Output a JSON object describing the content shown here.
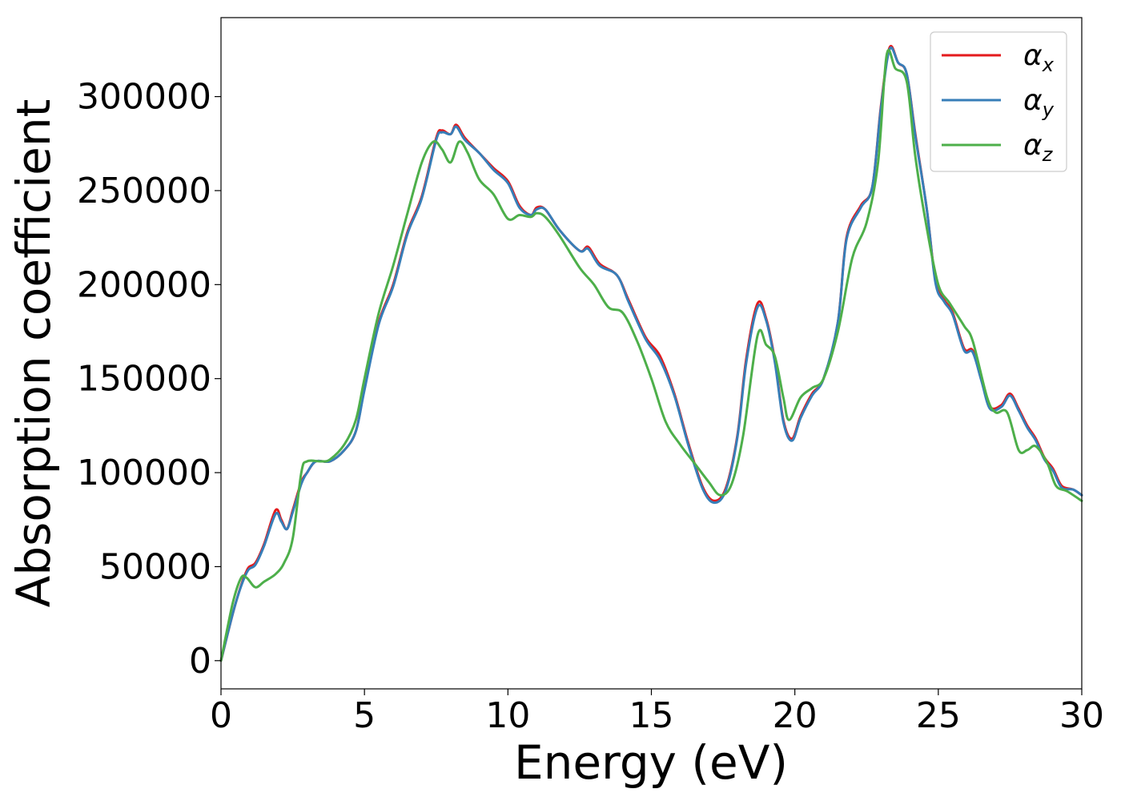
{
  "chart_data": {
    "type": "line",
    "title": "",
    "xlabel": "Energy (eV)",
    "ylabel": "Absorption coefficient",
    "xlim": [
      0,
      30
    ],
    "ylim": [
      -15000,
      342000
    ],
    "xticks": [
      0,
      5,
      10,
      15,
      20,
      25,
      30
    ],
    "xtick_labels": [
      "0",
      "5",
      "10",
      "15",
      "20",
      "25",
      "30"
    ],
    "yticks": [
      0,
      50000,
      100000,
      150000,
      200000,
      250000,
      300000
    ],
    "ytick_labels": [
      "0",
      "50000",
      "100000",
      "150000",
      "200000",
      "250000",
      "300000"
    ],
    "grid": false,
    "legend": {
      "position": "top-right"
    },
    "series": [
      {
        "name": "α",
        "subscript": "x",
        "color": "#e41a1c",
        "x": [
          0,
          0.5,
          0.9,
          1.2,
          1.5,
          1.9,
          2.1,
          2.3,
          2.5,
          2.8,
          3.0,
          3.3,
          3.8,
          4.3,
          4.7,
          5.0,
          5.5,
          6.0,
          6.5,
          7.0,
          7.5,
          7.7,
          8.0,
          8.2,
          8.5,
          9.0,
          9.5,
          10.0,
          10.4,
          10.8,
          11.0,
          11.3,
          11.8,
          12.5,
          12.8,
          13.2,
          13.8,
          14.2,
          14.8,
          15.3,
          15.8,
          16.3,
          16.8,
          17.2,
          17.6,
          18.0,
          18.3,
          18.7,
          19.0,
          19.3,
          19.6,
          19.9,
          20.2,
          20.6,
          21.0,
          21.5,
          21.8,
          22.3,
          22.7,
          23.0,
          23.3,
          23.6,
          23.9,
          24.2,
          24.6,
          24.9,
          25.2,
          25.5,
          25.9,
          26.2,
          26.5,
          26.8,
          27.2,
          27.5,
          27.8,
          28.1,
          28.4,
          28.7,
          29.0,
          29.3,
          29.7,
          30.0
        ],
        "y": [
          0,
          30000,
          48000,
          52000,
          62000,
          80000,
          75000,
          70000,
          80000,
          95000,
          100000,
          106000,
          106000,
          112000,
          122000,
          145000,
          180000,
          200000,
          228000,
          247000,
          278000,
          282000,
          280000,
          285000,
          278000,
          270000,
          262000,
          255000,
          242000,
          237000,
          241000,
          240000,
          229000,
          218000,
          220000,
          211000,
          205000,
          192000,
          172000,
          162000,
          142000,
          115000,
          92000,
          85000,
          92000,
          120000,
          160000,
          190000,
          182000,
          160000,
          128000,
          118000,
          130000,
          142000,
          150000,
          180000,
          225000,
          242000,
          252000,
          295000,
          326000,
          318000,
          312000,
          280000,
          240000,
          202000,
          192000,
          185000,
          166000,
          165000,
          150000,
          135000,
          136000,
          142000,
          134000,
          125000,
          118000,
          108000,
          102000,
          93000,
          91000,
          88000
        ]
      },
      {
        "name": "α",
        "subscript": "y",
        "color": "#377eb8",
        "x": [
          0,
          0.5,
          0.9,
          1.2,
          1.5,
          1.9,
          2.1,
          2.3,
          2.5,
          2.8,
          3.0,
          3.3,
          3.8,
          4.3,
          4.7,
          5.0,
          5.5,
          6.0,
          6.5,
          7.0,
          7.5,
          7.7,
          8.0,
          8.2,
          8.5,
          9.0,
          9.5,
          10.0,
          10.4,
          10.8,
          11.0,
          11.3,
          11.8,
          12.5,
          12.8,
          13.2,
          13.8,
          14.2,
          14.8,
          15.3,
          15.8,
          16.3,
          16.8,
          17.2,
          17.6,
          18.0,
          18.3,
          18.7,
          19.0,
          19.3,
          19.6,
          19.9,
          20.2,
          20.6,
          21.0,
          21.5,
          21.8,
          22.3,
          22.7,
          23.0,
          23.3,
          23.6,
          23.9,
          24.2,
          24.6,
          24.9,
          25.2,
          25.5,
          25.9,
          26.2,
          26.5,
          26.8,
          27.2,
          27.5,
          27.8,
          28.1,
          28.4,
          28.7,
          29.0,
          29.3,
          29.7,
          30.0
        ],
        "y": [
          0,
          30000,
          47000,
          51000,
          61000,
          78000,
          74000,
          70000,
          79000,
          94000,
          100000,
          106000,
          106000,
          112000,
          122000,
          144000,
          179000,
          199000,
          227000,
          246000,
          277000,
          281000,
          280000,
          284000,
          277000,
          270000,
          261000,
          254000,
          241000,
          237000,
          240000,
          240000,
          229000,
          218000,
          219000,
          210000,
          205000,
          191000,
          171000,
          160000,
          141000,
          114000,
          91000,
          84000,
          91000,
          119000,
          158000,
          188000,
          181000,
          159000,
          127000,
          117000,
          129000,
          141000,
          150000,
          180000,
          224000,
          241000,
          252000,
          294000,
          325000,
          318000,
          312000,
          279000,
          240000,
          201000,
          191000,
          184000,
          165000,
          164000,
          149000,
          134000,
          135000,
          141000,
          133000,
          124000,
          117000,
          107000,
          101000,
          92000,
          91000,
          88000
        ]
      },
      {
        "name": "α",
        "subscript": "z",
        "color": "#4daf4a",
        "x": [
          0,
          0.4,
          0.7,
          0.9,
          1.2,
          1.5,
          1.9,
          2.2,
          2.5,
          2.8,
          3.0,
          3.5,
          3.8,
          4.3,
          4.7,
          5.0,
          5.5,
          6.0,
          6.5,
          7.0,
          7.4,
          7.7,
          8.0,
          8.3,
          8.6,
          9.0,
          9.5,
          10.0,
          10.4,
          10.8,
          11.0,
          11.3,
          11.8,
          12.5,
          13.0,
          13.5,
          14.0,
          14.5,
          15.0,
          15.5,
          16.0,
          16.5,
          17.0,
          17.4,
          17.8,
          18.2,
          18.7,
          19.0,
          19.3,
          19.6,
          19.8,
          20.2,
          20.6,
          21.0,
          21.5,
          22.0,
          22.5,
          22.9,
          23.2,
          23.5,
          23.9,
          24.2,
          24.6,
          25.0,
          25.4,
          25.9,
          26.2,
          26.7,
          27.0,
          27.4,
          27.8,
          28.1,
          28.4,
          28.8,
          29.1,
          29.5,
          30.0
        ],
        "y": [
          0,
          30000,
          44000,
          44000,
          39000,
          42000,
          46000,
          52000,
          65000,
          100000,
          106000,
          106000,
          107000,
          115000,
          128000,
          150000,
          185000,
          210000,
          238000,
          265000,
          276000,
          272000,
          265000,
          276000,
          270000,
          256000,
          248000,
          235000,
          237000,
          236000,
          238000,
          236000,
          226000,
          209000,
          200000,
          188000,
          185000,
          170000,
          150000,
          127000,
          115000,
          105000,
          95000,
          88000,
          94000,
          120000,
          173000,
          168000,
          162000,
          140000,
          128000,
          140000,
          145000,
          150000,
          175000,
          214000,
          233000,
          265000,
          322000,
          315000,
          308000,
          268000,
          230000,
          200000,
          190000,
          178000,
          170000,
          140000,
          132000,
          132000,
          112000,
          112000,
          114000,
          105000,
          93000,
          90000,
          85000
        ]
      }
    ]
  }
}
